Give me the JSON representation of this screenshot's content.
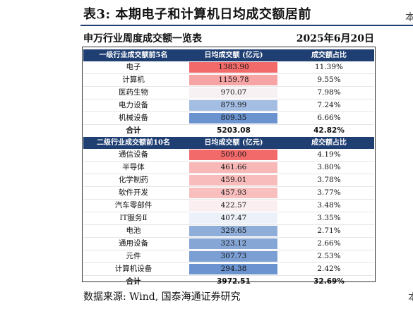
{
  "page": {
    "title": "表3:  本期电子和计算机日均成交额居前",
    "right_edge_top": "本",
    "right_edge_bottom": "本",
    "source": "数据来源: Wind, 国泰海通证券研究"
  },
  "table": {
    "caption": "申万行业周度成交额一览表",
    "date": "2025年6月20日",
    "section1": {
      "headers": [
        "一级行业成交额前5名",
        "日均成交额 (亿元)",
        "成交额占比"
      ],
      "rows": [
        {
          "name": "电子",
          "value": "1383.90",
          "share": "11.39%",
          "color": "#f26a6a"
        },
        {
          "name": "计算机",
          "value": "1159.78",
          "share": "9.55%",
          "color": "#f7a4a4"
        },
        {
          "name": "医药生物",
          "value": "970.07",
          "share": "7.98%",
          "color": "#f7f1f4"
        },
        {
          "name": "电力设备",
          "value": "879.99",
          "share": "7.24%",
          "color": "#a4bde3"
        },
        {
          "name": "机械设备",
          "value": "809.35",
          "share": "6.66%",
          "color": "#6b93cf"
        }
      ],
      "total": {
        "label": "合计",
        "value": "5203.08",
        "share": "42.82%"
      }
    },
    "section2": {
      "headers": [
        "二级行业成交额前10名",
        "日均成交额 (亿元)",
        "成交额占比"
      ],
      "rows": [
        {
          "name": "通信设备",
          "value": "509.00",
          "share": "4.19%",
          "color": "#f26a6a"
        },
        {
          "name": "半导体",
          "value": "461.66",
          "share": "3.80%",
          "color": "#f9b8b8"
        },
        {
          "name": "化学制药",
          "value": "459.01",
          "share": "3.78%",
          "color": "#f9bcbc"
        },
        {
          "name": "软件开发",
          "value": "457.93",
          "share": "3.77%",
          "color": "#f9bebe"
        },
        {
          "name": "汽车零部件",
          "value": "422.57",
          "share": "3.48%",
          "color": "#faeef0"
        },
        {
          "name": "IT服务Ⅱ",
          "value": "407.47",
          "share": "3.35%",
          "color": "#ecf0f8"
        },
        {
          "name": "电池",
          "value": "329.65",
          "share": "2.71%",
          "color": "#8fadd9"
        },
        {
          "name": "通用设备",
          "value": "323.12",
          "share": "2.66%",
          "color": "#86a6d6"
        },
        {
          "name": "元件",
          "value": "307.73",
          "share": "2.53%",
          "color": "#7b9ed3"
        },
        {
          "name": "计算机设备",
          "value": "294.38",
          "share": "2.42%",
          "color": "#6b93cf"
        }
      ],
      "total": {
        "label": "合计",
        "value": "3972.51",
        "share": "32.69%"
      }
    }
  }
}
